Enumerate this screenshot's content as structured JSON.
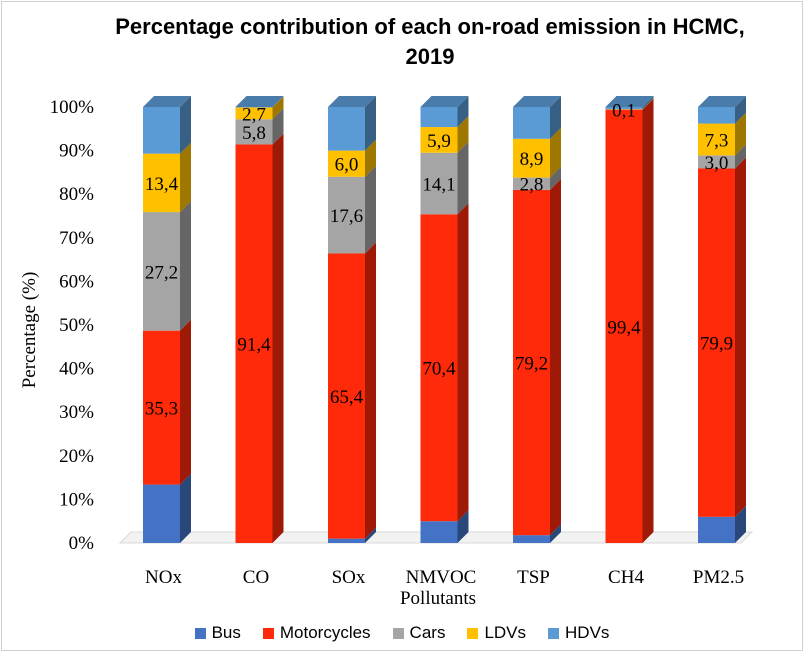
{
  "chart_data": {
    "type": "bar",
    "stacked": true,
    "three_d": true,
    "title_line1": "Percentage contribution of each on-road emission in HCMC,",
    "title_line2": "2019",
    "xlabel": "Pollutants",
    "ylabel": "Percentage (%)",
    "ylim": [
      0,
      100
    ],
    "yticks": [
      "0%",
      "10%",
      "20%",
      "30%",
      "40%",
      "50%",
      "60%",
      "70%",
      "80%",
      "90%",
      "100%"
    ],
    "categories": [
      "NOx",
      "CO",
      "SOx",
      "NMVOC",
      "TSP",
      "CH4",
      "PM2.5"
    ],
    "series": [
      {
        "name": "Bus",
        "color": "#4472C4",
        "values": [
          13.4,
          0.0,
          1.0,
          5.0,
          1.8,
          0.0,
          6.0
        ],
        "labels": [
          "",
          "",
          "",
          "",
          "",
          "",
          ""
        ]
      },
      {
        "name": "Motorcycles",
        "color": "#FF2A0A",
        "values": [
          35.3,
          91.4,
          65.4,
          70.4,
          79.2,
          99.4,
          79.9
        ],
        "labels": [
          "35,3",
          "91,4",
          "65,4",
          "70,4",
          "79,2",
          "99,4",
          "79,9"
        ]
      },
      {
        "name": "Cars",
        "color": "#A5A5A5",
        "values": [
          27.2,
          5.8,
          17.6,
          14.1,
          2.8,
          0.0,
          3.0
        ],
        "labels": [
          "27,2",
          "5,8",
          "17,6",
          "14,1",
          "2,8",
          "",
          "3,0"
        ]
      },
      {
        "name": "LDVs",
        "color": "#FFC000",
        "values": [
          13.4,
          2.7,
          6.0,
          5.9,
          8.9,
          0.1,
          7.3
        ],
        "labels": [
          "13,4",
          "2,7",
          "6,0",
          "5,9",
          "8,9",
          "0,1",
          "7,3"
        ]
      },
      {
        "name": "HDVs",
        "color": "#5B9BD5",
        "values": [
          10.7,
          0.1,
          10.0,
          4.6,
          7.3,
          0.5,
          3.8
        ],
        "labels": [
          "",
          "",
          "",
          "",
          "",
          "",
          ""
        ]
      }
    ],
    "legend": {
      "position": "bottom"
    },
    "grid": false
  }
}
